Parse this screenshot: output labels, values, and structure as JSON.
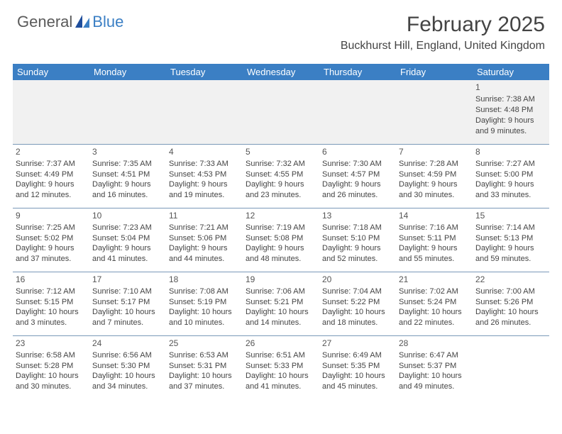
{
  "logo": {
    "general": "General",
    "blue": "Blue"
  },
  "title": "February 2025",
  "location": "Buckhurst Hill, England, United Kingdom",
  "colors": {
    "header_bg": "#3b7fc4",
    "header_text": "#ffffff",
    "row_divider": "#7a99b8",
    "first_row_bg": "#f1f1f1",
    "body_text": "#444444",
    "logo_gray": "#5a5a5a",
    "logo_blue": "#3b7fc4"
  },
  "day_headers": [
    "Sunday",
    "Monday",
    "Tuesday",
    "Wednesday",
    "Thursday",
    "Friday",
    "Saturday"
  ],
  "weeks": [
    [
      {
        "day": "",
        "sunrise": "",
        "sunset": "",
        "day1": "",
        "day2": ""
      },
      {
        "day": "",
        "sunrise": "",
        "sunset": "",
        "day1": "",
        "day2": ""
      },
      {
        "day": "",
        "sunrise": "",
        "sunset": "",
        "day1": "",
        "day2": ""
      },
      {
        "day": "",
        "sunrise": "",
        "sunset": "",
        "day1": "",
        "day2": ""
      },
      {
        "day": "",
        "sunrise": "",
        "sunset": "",
        "day1": "",
        "day2": ""
      },
      {
        "day": "",
        "sunrise": "",
        "sunset": "",
        "day1": "",
        "day2": ""
      },
      {
        "day": "1",
        "sunrise": "Sunrise: 7:38 AM",
        "sunset": "Sunset: 4:48 PM",
        "day1": "Daylight: 9 hours",
        "day2": "and 9 minutes."
      }
    ],
    [
      {
        "day": "2",
        "sunrise": "Sunrise: 7:37 AM",
        "sunset": "Sunset: 4:49 PM",
        "day1": "Daylight: 9 hours",
        "day2": "and 12 minutes."
      },
      {
        "day": "3",
        "sunrise": "Sunrise: 7:35 AM",
        "sunset": "Sunset: 4:51 PM",
        "day1": "Daylight: 9 hours",
        "day2": "and 16 minutes."
      },
      {
        "day": "4",
        "sunrise": "Sunrise: 7:33 AM",
        "sunset": "Sunset: 4:53 PM",
        "day1": "Daylight: 9 hours",
        "day2": "and 19 minutes."
      },
      {
        "day": "5",
        "sunrise": "Sunrise: 7:32 AM",
        "sunset": "Sunset: 4:55 PM",
        "day1": "Daylight: 9 hours",
        "day2": "and 23 minutes."
      },
      {
        "day": "6",
        "sunrise": "Sunrise: 7:30 AM",
        "sunset": "Sunset: 4:57 PM",
        "day1": "Daylight: 9 hours",
        "day2": "and 26 minutes."
      },
      {
        "day": "7",
        "sunrise": "Sunrise: 7:28 AM",
        "sunset": "Sunset: 4:59 PM",
        "day1": "Daylight: 9 hours",
        "day2": "and 30 minutes."
      },
      {
        "day": "8",
        "sunrise": "Sunrise: 7:27 AM",
        "sunset": "Sunset: 5:00 PM",
        "day1": "Daylight: 9 hours",
        "day2": "and 33 minutes."
      }
    ],
    [
      {
        "day": "9",
        "sunrise": "Sunrise: 7:25 AM",
        "sunset": "Sunset: 5:02 PM",
        "day1": "Daylight: 9 hours",
        "day2": "and 37 minutes."
      },
      {
        "day": "10",
        "sunrise": "Sunrise: 7:23 AM",
        "sunset": "Sunset: 5:04 PM",
        "day1": "Daylight: 9 hours",
        "day2": "and 41 minutes."
      },
      {
        "day": "11",
        "sunrise": "Sunrise: 7:21 AM",
        "sunset": "Sunset: 5:06 PM",
        "day1": "Daylight: 9 hours",
        "day2": "and 44 minutes."
      },
      {
        "day": "12",
        "sunrise": "Sunrise: 7:19 AM",
        "sunset": "Sunset: 5:08 PM",
        "day1": "Daylight: 9 hours",
        "day2": "and 48 minutes."
      },
      {
        "day": "13",
        "sunrise": "Sunrise: 7:18 AM",
        "sunset": "Sunset: 5:10 PM",
        "day1": "Daylight: 9 hours",
        "day2": "and 52 minutes."
      },
      {
        "day": "14",
        "sunrise": "Sunrise: 7:16 AM",
        "sunset": "Sunset: 5:11 PM",
        "day1": "Daylight: 9 hours",
        "day2": "and 55 minutes."
      },
      {
        "day": "15",
        "sunrise": "Sunrise: 7:14 AM",
        "sunset": "Sunset: 5:13 PM",
        "day1": "Daylight: 9 hours",
        "day2": "and 59 minutes."
      }
    ],
    [
      {
        "day": "16",
        "sunrise": "Sunrise: 7:12 AM",
        "sunset": "Sunset: 5:15 PM",
        "day1": "Daylight: 10 hours",
        "day2": "and 3 minutes."
      },
      {
        "day": "17",
        "sunrise": "Sunrise: 7:10 AM",
        "sunset": "Sunset: 5:17 PM",
        "day1": "Daylight: 10 hours",
        "day2": "and 7 minutes."
      },
      {
        "day": "18",
        "sunrise": "Sunrise: 7:08 AM",
        "sunset": "Sunset: 5:19 PM",
        "day1": "Daylight: 10 hours",
        "day2": "and 10 minutes."
      },
      {
        "day": "19",
        "sunrise": "Sunrise: 7:06 AM",
        "sunset": "Sunset: 5:21 PM",
        "day1": "Daylight: 10 hours",
        "day2": "and 14 minutes."
      },
      {
        "day": "20",
        "sunrise": "Sunrise: 7:04 AM",
        "sunset": "Sunset: 5:22 PM",
        "day1": "Daylight: 10 hours",
        "day2": "and 18 minutes."
      },
      {
        "day": "21",
        "sunrise": "Sunrise: 7:02 AM",
        "sunset": "Sunset: 5:24 PM",
        "day1": "Daylight: 10 hours",
        "day2": "and 22 minutes."
      },
      {
        "day": "22",
        "sunrise": "Sunrise: 7:00 AM",
        "sunset": "Sunset: 5:26 PM",
        "day1": "Daylight: 10 hours",
        "day2": "and 26 minutes."
      }
    ],
    [
      {
        "day": "23",
        "sunrise": "Sunrise: 6:58 AM",
        "sunset": "Sunset: 5:28 PM",
        "day1": "Daylight: 10 hours",
        "day2": "and 30 minutes."
      },
      {
        "day": "24",
        "sunrise": "Sunrise: 6:56 AM",
        "sunset": "Sunset: 5:30 PM",
        "day1": "Daylight: 10 hours",
        "day2": "and 34 minutes."
      },
      {
        "day": "25",
        "sunrise": "Sunrise: 6:53 AM",
        "sunset": "Sunset: 5:31 PM",
        "day1": "Daylight: 10 hours",
        "day2": "and 37 minutes."
      },
      {
        "day": "26",
        "sunrise": "Sunrise: 6:51 AM",
        "sunset": "Sunset: 5:33 PM",
        "day1": "Daylight: 10 hours",
        "day2": "and 41 minutes."
      },
      {
        "day": "27",
        "sunrise": "Sunrise: 6:49 AM",
        "sunset": "Sunset: 5:35 PM",
        "day1": "Daylight: 10 hours",
        "day2": "and 45 minutes."
      },
      {
        "day": "28",
        "sunrise": "Sunrise: 6:47 AM",
        "sunset": "Sunset: 5:37 PM",
        "day1": "Daylight: 10 hours",
        "day2": "and 49 minutes."
      },
      {
        "day": "",
        "sunrise": "",
        "sunset": "",
        "day1": "",
        "day2": ""
      }
    ]
  ]
}
